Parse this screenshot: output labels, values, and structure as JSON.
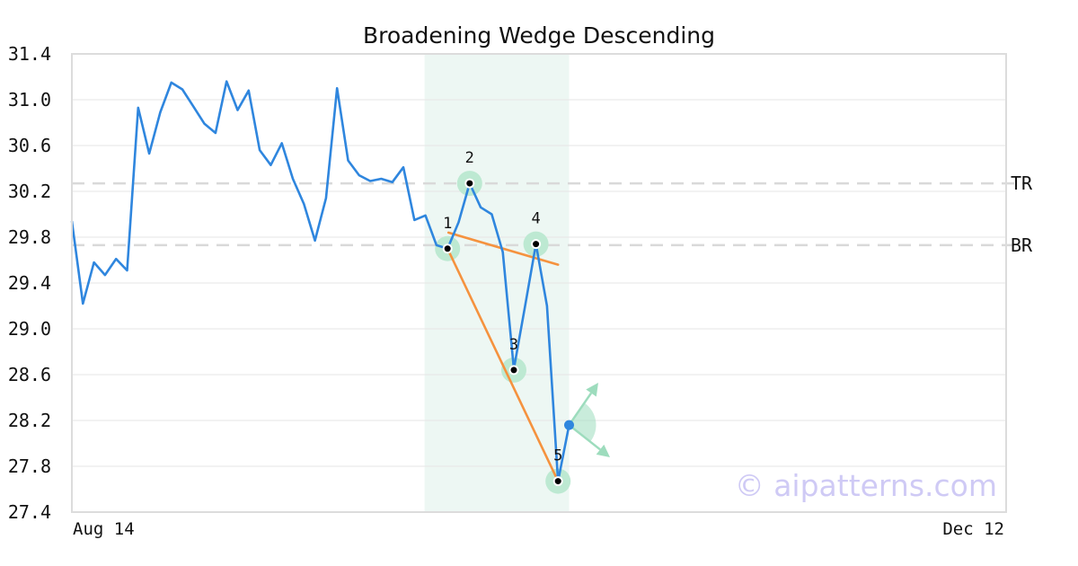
{
  "chart_data": {
    "type": "line",
    "title": "Broadening Wedge Descending",
    "xlabel": "",
    "ylabel": "",
    "ylim": [
      27.4,
      31.4
    ],
    "y_ticks": [
      "31.4",
      "31.0",
      "30.6",
      "30.2",
      "29.8",
      "29.4",
      "29.0",
      "28.6",
      "28.2",
      "27.8",
      "27.4"
    ],
    "x_tick_labels": [
      "Aug 14",
      "Dec 12"
    ],
    "grid": true,
    "series": [
      {
        "values": [
          29.94,
          29.22,
          29.58,
          29.47,
          29.61,
          29.51,
          30.93,
          30.53,
          30.89,
          31.15,
          31.09,
          30.94,
          30.79,
          30.71,
          31.16,
          30.91,
          31.08,
          30.56,
          30.43,
          30.62,
          30.31,
          30.09,
          29.77,
          30.14,
          31.1,
          30.47,
          30.34,
          30.29,
          30.31,
          30.28,
          30.41,
          29.95,
          29.99,
          29.73,
          29.7,
          29.93,
          30.27,
          30.06,
          30.0,
          29.67,
          28.65,
          29.19,
          29.74,
          29.2,
          27.67,
          28.16
        ]
      }
    ],
    "pattern_window": {
      "start_index": 32,
      "end_index": 45
    },
    "levels": [
      {
        "label": "TR",
        "value": 30.27
      },
      {
        "label": "BR",
        "value": 29.73
      }
    ],
    "pivots": [
      {
        "label": "1",
        "index": 34,
        "value": 29.7
      },
      {
        "label": "2",
        "index": 36,
        "value": 30.27
      },
      {
        "label": "3",
        "index": 40,
        "value": 28.64
      },
      {
        "label": "4",
        "index": 42,
        "value": 29.74
      },
      {
        "label": "5",
        "index": 44,
        "value": 27.67
      }
    ],
    "trend_lines": [
      {
        "name": "upper",
        "from": {
          "index": 34,
          "value": 29.84
        },
        "to": {
          "index": 44,
          "value": 29.56
        }
      },
      {
        "name": "lower",
        "from": {
          "index": 34,
          "value": 29.7
        },
        "to": {
          "index": 44,
          "value": 27.67
        }
      }
    ],
    "current_point": {
      "index": 45,
      "value": 28.16
    },
    "watermark": "© aipatterns.com",
    "colors": {
      "price_line": "#2f86de",
      "trend_line": "#f5923e",
      "pattern_band": "#edf7f3",
      "pivot_halo": "#bde9d2",
      "grid": "#e6e6e6",
      "level_line": "#d9d9d9",
      "arrows": "#9ddcbd",
      "current_point": "#2f86de",
      "watermark": "#cfcaf5"
    }
  }
}
